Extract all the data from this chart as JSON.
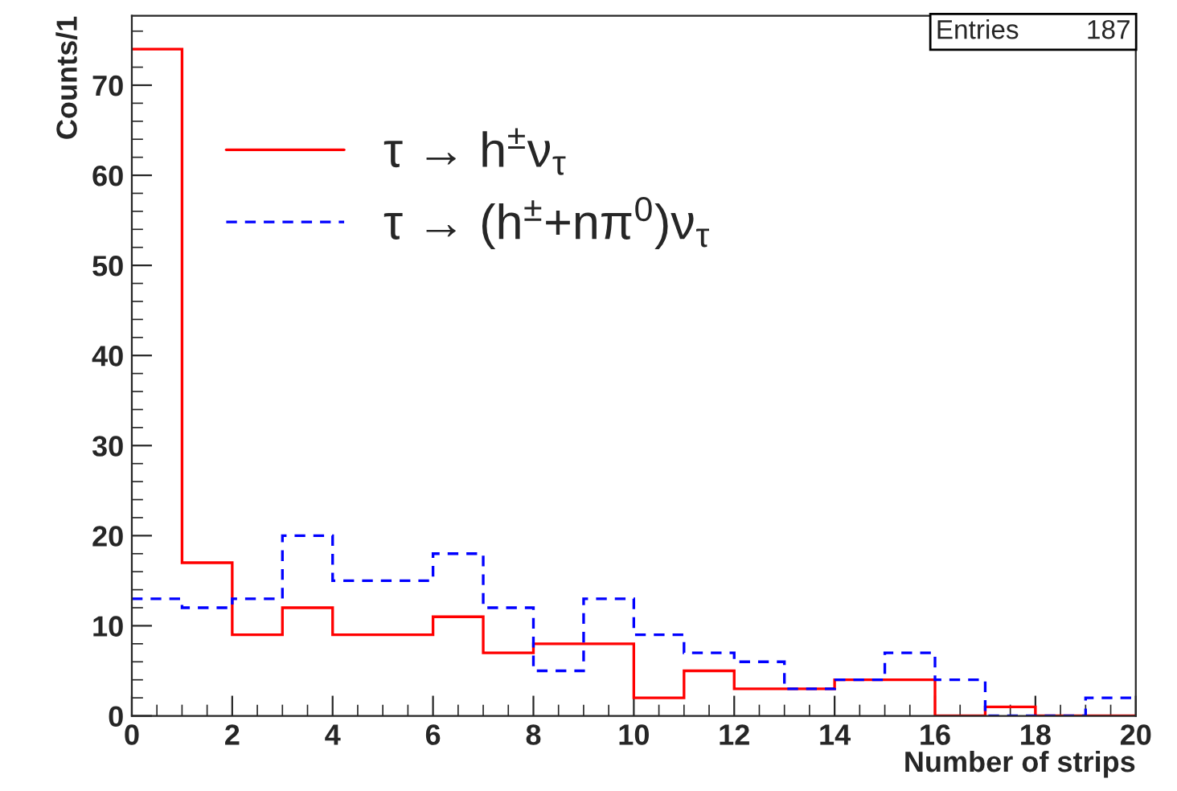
{
  "chart_data": {
    "type": "histogram",
    "xlabel": "Number of strips",
    "ylabel": "Counts/1",
    "bins": [
      0,
      1,
      2,
      3,
      4,
      5,
      6,
      7,
      8,
      9,
      10,
      11,
      12,
      13,
      14,
      15,
      16,
      17,
      18,
      19,
      20
    ],
    "series": [
      {
        "name": "τ → h$^{±}$ν$_{τ}$",
        "color": "#ff0000",
        "line_style": "solid",
        "values": [
          74,
          17,
          9,
          12,
          9,
          9,
          11,
          7,
          8,
          8,
          2,
          5,
          3,
          3,
          4,
          4,
          0,
          1,
          0,
          0
        ]
      },
      {
        "name": "τ → (h$^{±}$+nπ$^{0}$)ν$_{τ}$",
        "color": "#0000ff",
        "line_style": "dashed",
        "values": [
          13,
          12,
          13,
          20,
          15,
          15,
          18,
          12,
          5,
          13,
          9,
          7,
          6,
          3,
          4,
          7,
          4,
          0,
          0,
          2
        ]
      }
    ],
    "xlim": [
      0,
      20
    ],
    "xticks": [
      0,
      2,
      4,
      6,
      8,
      10,
      12,
      14,
      16,
      18,
      20
    ],
    "ylim": [
      0,
      77.7
    ],
    "yticks": [
      0,
      10,
      20,
      30,
      40,
      50,
      60,
      70
    ],
    "annotations": [
      "Entries         187"
    ],
    "legend": "top left",
    "grid": false
  }
}
